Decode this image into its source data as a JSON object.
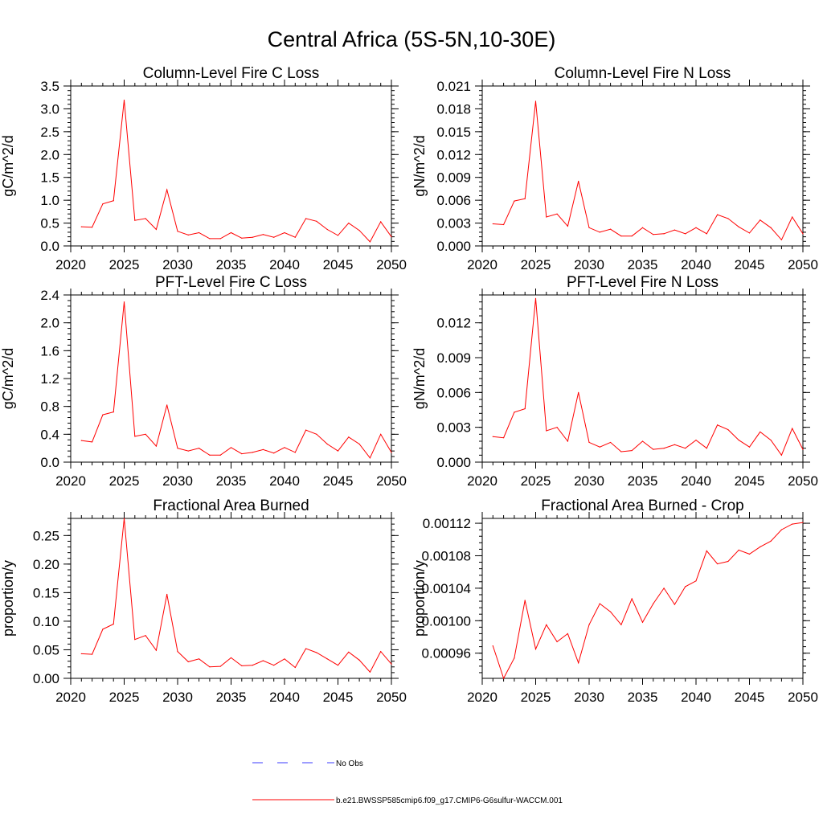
{
  "figure": {
    "title": "Central Africa (5S-5N,10-30E)"
  },
  "legend": {
    "items": [
      {
        "label": "No Obs",
        "style": "dashed",
        "color": "#3b3bff"
      },
      {
        "label": "b.e21.BWSSP585cmip6.f09_g17.CMIP6-G6sulfur-WACCM.001",
        "style": "solid",
        "color": "#ff0000"
      }
    ]
  },
  "colors": {
    "series": "#ff0000",
    "axis": "#000000"
  },
  "chart_data": [
    {
      "type": "line",
      "title": "Column-Level Fire C Loss",
      "ylabel": "gC/m^2/d",
      "xlim": [
        2020,
        2050
      ],
      "ylim": [
        0,
        3.5
      ],
      "xticks": [
        2020,
        2025,
        2030,
        2035,
        2040,
        2045,
        2050
      ],
      "yticks": [
        0,
        0.5,
        1.0,
        1.5,
        2.0,
        2.5,
        3.0,
        3.5
      ],
      "ytick_labels": [
        "0.0",
        "0.5",
        "1.0",
        "1.5",
        "2.0",
        "2.5",
        "3.0",
        "3.5"
      ],
      "yminor_step": 0.1,
      "x": [
        2021,
        2022,
        2023,
        2024,
        2025,
        2026,
        2027,
        2028,
        2029,
        2030,
        2031,
        2032,
        2033,
        2034,
        2035,
        2036,
        2037,
        2038,
        2039,
        2040,
        2041,
        2042,
        2043,
        2044,
        2045,
        2046,
        2047,
        2048,
        2049,
        2050
      ],
      "series": [
        {
          "values": [
            0.42,
            0.41,
            0.92,
            0.99,
            3.19,
            0.56,
            0.6,
            0.36,
            1.23,
            0.32,
            0.24,
            0.29,
            0.16,
            0.16,
            0.29,
            0.17,
            0.19,
            0.25,
            0.19,
            0.29,
            0.19,
            0.6,
            0.54,
            0.36,
            0.23,
            0.5,
            0.34,
            0.09,
            0.53,
            0.2
          ]
        }
      ]
    },
    {
      "type": "line",
      "title": "Column-Level Fire N Loss",
      "ylabel": "gN/m^2/d",
      "xlim": [
        2020,
        2050
      ],
      "ylim": [
        0,
        0.021
      ],
      "xticks": [
        2020,
        2025,
        2030,
        2035,
        2040,
        2045,
        2050
      ],
      "yticks": [
        0,
        0.003,
        0.006,
        0.009,
        0.012,
        0.015,
        0.018,
        0.021
      ],
      "ytick_labels": [
        "0.000",
        "0.003",
        "0.006",
        "0.009",
        "0.012",
        "0.015",
        "0.018",
        "0.021"
      ],
      "yminor_step": 0.0006,
      "x": [
        2021,
        2022,
        2023,
        2024,
        2025,
        2026,
        2027,
        2028,
        2029,
        2030,
        2031,
        2032,
        2033,
        2034,
        2035,
        2036,
        2037,
        2038,
        2039,
        2040,
        2041,
        2042,
        2043,
        2044,
        2045,
        2046,
        2047,
        2048,
        2049,
        2050
      ],
      "series": [
        {
          "values": [
            0.0029,
            0.0028,
            0.0059,
            0.0062,
            0.019,
            0.0038,
            0.0042,
            0.0026,
            0.0085,
            0.0024,
            0.0018,
            0.0022,
            0.0013,
            0.0013,
            0.0024,
            0.0015,
            0.0016,
            0.0021,
            0.0016,
            0.0024,
            0.0016,
            0.0041,
            0.0036,
            0.0025,
            0.0017,
            0.0034,
            0.0024,
            0.0008,
            0.0038,
            0.0016
          ]
        }
      ]
    },
    {
      "type": "line",
      "title": "PFT-Level Fire C Loss",
      "ylabel": "gC/m^2/d",
      "xlim": [
        2020,
        2050
      ],
      "ylim": [
        0,
        2.4
      ],
      "xticks": [
        2020,
        2025,
        2030,
        2035,
        2040,
        2045,
        2050
      ],
      "yticks": [
        0,
        0.4,
        0.8,
        1.2,
        1.6,
        2.0,
        2.4
      ],
      "ytick_labels": [
        "0.0",
        "0.4",
        "0.8",
        "1.2",
        "1.6",
        "2.0",
        "2.4"
      ],
      "yminor_step": 0.08,
      "x": [
        2021,
        2022,
        2023,
        2024,
        2025,
        2026,
        2027,
        2028,
        2029,
        2030,
        2031,
        2032,
        2033,
        2034,
        2035,
        2036,
        2037,
        2038,
        2039,
        2040,
        2041,
        2042,
        2043,
        2044,
        2045,
        2046,
        2047,
        2048,
        2049,
        2050
      ],
      "series": [
        {
          "values": [
            0.31,
            0.29,
            0.68,
            0.72,
            2.3,
            0.37,
            0.4,
            0.23,
            0.82,
            0.2,
            0.16,
            0.2,
            0.1,
            0.1,
            0.21,
            0.12,
            0.14,
            0.18,
            0.13,
            0.21,
            0.14,
            0.46,
            0.4,
            0.26,
            0.16,
            0.36,
            0.26,
            0.06,
            0.4,
            0.14
          ]
        }
      ]
    },
    {
      "type": "line",
      "title": "PFT-Level Fire N Loss",
      "ylabel": "gN/m^2/d",
      "xlim": [
        2020,
        2050
      ],
      "ylim": [
        0,
        0.0144
      ],
      "xticks": [
        2020,
        2025,
        2030,
        2035,
        2040,
        2045,
        2050
      ],
      "yticks": [
        0,
        0.003,
        0.006,
        0.009,
        0.012
      ],
      "ytick_labels": [
        "0.000",
        "0.003",
        "0.006",
        "0.009",
        "0.012"
      ],
      "yminor_step": 0.0006,
      "x": [
        2021,
        2022,
        2023,
        2024,
        2025,
        2026,
        2027,
        2028,
        2029,
        2030,
        2031,
        2032,
        2033,
        2034,
        2035,
        2036,
        2037,
        2038,
        2039,
        2040,
        2041,
        2042,
        2043,
        2044,
        2045,
        2046,
        2047,
        2048,
        2049,
        2050
      ],
      "series": [
        {
          "values": [
            0.0022,
            0.0021,
            0.0043,
            0.0046,
            0.0141,
            0.0027,
            0.003,
            0.0018,
            0.006,
            0.0017,
            0.0013,
            0.0017,
            0.0009,
            0.001,
            0.0018,
            0.0011,
            0.0012,
            0.0015,
            0.0012,
            0.0019,
            0.0012,
            0.0032,
            0.0028,
            0.0019,
            0.0013,
            0.0026,
            0.0019,
            0.0006,
            0.0029,
            0.0011
          ]
        }
      ]
    },
    {
      "type": "line",
      "title": "Fractional Area Burned",
      "ylabel": "proportion/y",
      "xlim": [
        2020,
        2050
      ],
      "ylim": [
        0,
        0.28
      ],
      "xticks": [
        2020,
        2025,
        2030,
        2035,
        2040,
        2045,
        2050
      ],
      "yticks": [
        0,
        0.05,
        0.1,
        0.15,
        0.2,
        0.25
      ],
      "ytick_labels": [
        "0.00",
        "0.05",
        "0.10",
        "0.15",
        "0.20",
        "0.25"
      ],
      "yminor_step": 0.01,
      "x": [
        2021,
        2022,
        2023,
        2024,
        2025,
        2026,
        2027,
        2028,
        2029,
        2030,
        2031,
        2032,
        2033,
        2034,
        2035,
        2036,
        2037,
        2038,
        2039,
        2040,
        2041,
        2042,
        2043,
        2044,
        2045,
        2046,
        2047,
        2048,
        2049,
        2050
      ],
      "series": [
        {
          "values": [
            0.043,
            0.042,
            0.086,
            0.095,
            0.28,
            0.068,
            0.075,
            0.049,
            0.147,
            0.047,
            0.029,
            0.034,
            0.02,
            0.021,
            0.036,
            0.022,
            0.023,
            0.031,
            0.023,
            0.034,
            0.019,
            0.052,
            0.045,
            0.034,
            0.023,
            0.046,
            0.032,
            0.011,
            0.047,
            0.025
          ]
        }
      ]
    },
    {
      "type": "line",
      "title": "Fractional Area Burned - Crop",
      "ylabel": "proportion/y",
      "xlim": [
        2020,
        2050
      ],
      "ylim": [
        0.000929,
        0.001126
      ],
      "xticks": [
        2020,
        2025,
        2030,
        2035,
        2040,
        2045,
        2050
      ],
      "yticks": [
        0.00096,
        0.001,
        0.00104,
        0.00108,
        0.00112
      ],
      "ytick_labels": [
        "0.00096",
        "0.00100",
        "0.00104",
        "0.00108",
        "0.00112"
      ],
      "yminor_step": 8e-06,
      "x": [
        2021,
        2022,
        2023,
        2024,
        2025,
        2026,
        2027,
        2028,
        2029,
        2030,
        2031,
        2032,
        2033,
        2034,
        2035,
        2036,
        2037,
        2038,
        2039,
        2040,
        2041,
        2042,
        2043,
        2044,
        2045,
        2046,
        2047,
        2048,
        2049,
        2050
      ],
      "series": [
        {
          "values": [
            0.000969,
            0.000929,
            0.000954,
            0.001025,
            0.000965,
            0.000995,
            0.000974,
            0.000984,
            0.000948,
            0.000995,
            0.001021,
            0.001011,
            0.000995,
            0.001027,
            0.000998,
            0.001021,
            0.00104,
            0.00102,
            0.001042,
            0.001049,
            0.001086,
            0.00107,
            0.001073,
            0.001087,
            0.001082,
            0.001091,
            0.001098,
            0.001112,
            0.001119,
            0.001121
          ]
        }
      ]
    }
  ]
}
